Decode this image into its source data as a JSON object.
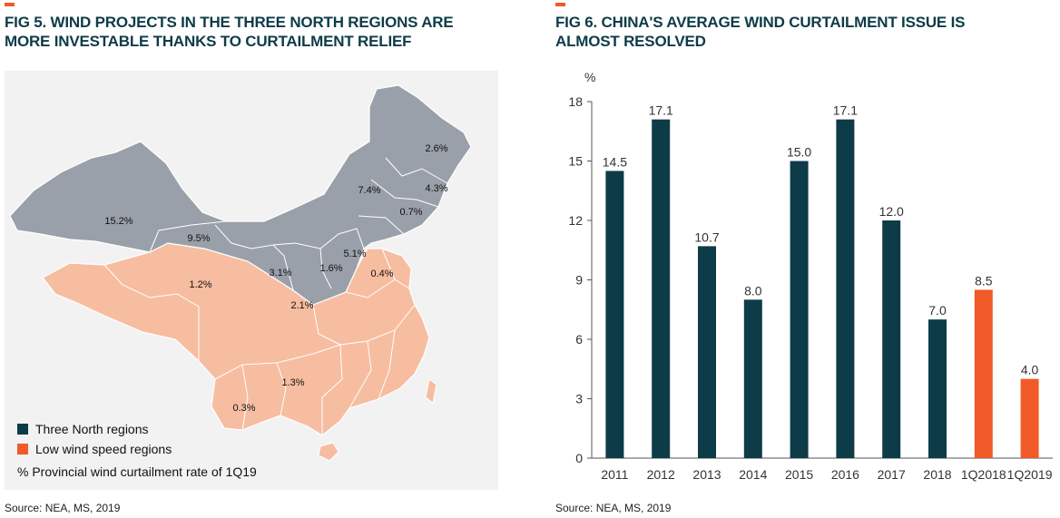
{
  "fig5": {
    "title_line1": "FIG 5. WIND PROJECTS IN THE THREE NORTH REGIONS ARE",
    "title_line2": "MORE INVESTABLE THANKS TO CURTAILMENT RELIEF",
    "legend": {
      "three_north": "Three North regions",
      "low_wind": "Low wind speed regions",
      "note": "% Provincial wind curtailment rate of 1Q19"
    },
    "labels": [
      "15.2%",
      "9.5%",
      "1.2%",
      "3.1%",
      "1.6%",
      "2.1%",
      "5.1%",
      "0.4%",
      "7.4%",
      "2.6%",
      "4.3%",
      "0.7%",
      "1.3%",
      "0.3%"
    ],
    "colors": {
      "three_north": "#9aa0a9",
      "low_wind": "#f7bda0",
      "panel": "#f2f2f2"
    },
    "source": "Source: NEA, MS, 2019"
  },
  "fig6": {
    "title_line1": "FIG 6. CHINA'S AVERAGE WIND CURTAILMENT ISSUE IS",
    "title_line2": "ALMOST RESOLVED",
    "source": "Source: NEA, MS, 2019"
  },
  "chart_data": {
    "type": "bar",
    "ylabel": "%",
    "ylim": [
      0,
      18
    ],
    "yticks": [
      0,
      3,
      6,
      9,
      12,
      15,
      18
    ],
    "categories": [
      "2011",
      "2012",
      "2013",
      "2014",
      "2015",
      "2016",
      "2017",
      "2018",
      "1Q2018",
      "1Q2019"
    ],
    "values": [
      14.5,
      17.1,
      10.7,
      8.0,
      15.0,
      17.1,
      12.0,
      7.0,
      8.5,
      4.0
    ],
    "data_labels": [
      "14.5",
      "17.1",
      "10.7",
      "8.0",
      "15.0",
      "17.1",
      "12.0",
      "7.0",
      "8.5",
      "4.0"
    ],
    "bar_colors": [
      "#0e3b48",
      "#0e3b48",
      "#0e3b48",
      "#0e3b48",
      "#0e3b48",
      "#0e3b48",
      "#0e3b48",
      "#0e3b48",
      "#f05a28",
      "#f05a28"
    ],
    "grid": false
  }
}
